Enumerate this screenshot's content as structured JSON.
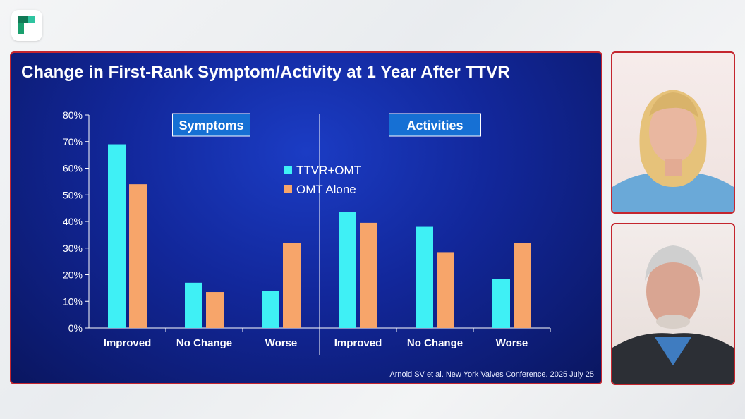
{
  "slide": {
    "title": "Change in First-Rank Symptom/Activity at 1 Year After TTVR",
    "citation": "Arnold SV et al. New York Valves Conference. 2025 July 25"
  },
  "colors": {
    "ttvr_omt": "#3ff0f5",
    "omt_alone": "#f7a56a",
    "label_box": "#1670d4",
    "slide_border": "#c4262e"
  },
  "icons": {
    "logo": "brand-logo-icon"
  },
  "chart_data": {
    "type": "bar",
    "ylim": [
      0,
      80
    ],
    "y_ticks": [
      "0%",
      "10%",
      "20%",
      "30%",
      "40%",
      "50%",
      "60%",
      "70%",
      "80%"
    ],
    "grid": false,
    "legend_placement": "center",
    "legend": [
      "TTVR+OMT",
      "OMT Alone"
    ],
    "panels": [
      {
        "label": "Symptoms",
        "categories": [
          "Improved",
          "No Change",
          "Worse"
        ],
        "series": [
          {
            "name": "TTVR+OMT",
            "values": [
              69,
              17,
              14
            ]
          },
          {
            "name": "OMT Alone",
            "values": [
              54,
              13.5,
              32
            ]
          }
        ]
      },
      {
        "label": "Activities",
        "categories": [
          "Improved",
          "No Change",
          "Worse"
        ],
        "series": [
          {
            "name": "TTVR+OMT",
            "values": [
              43.5,
              38,
              18.5
            ]
          },
          {
            "name": "OMT Alone",
            "values": [
              39.5,
              28.5,
              32
            ]
          }
        ]
      }
    ]
  }
}
